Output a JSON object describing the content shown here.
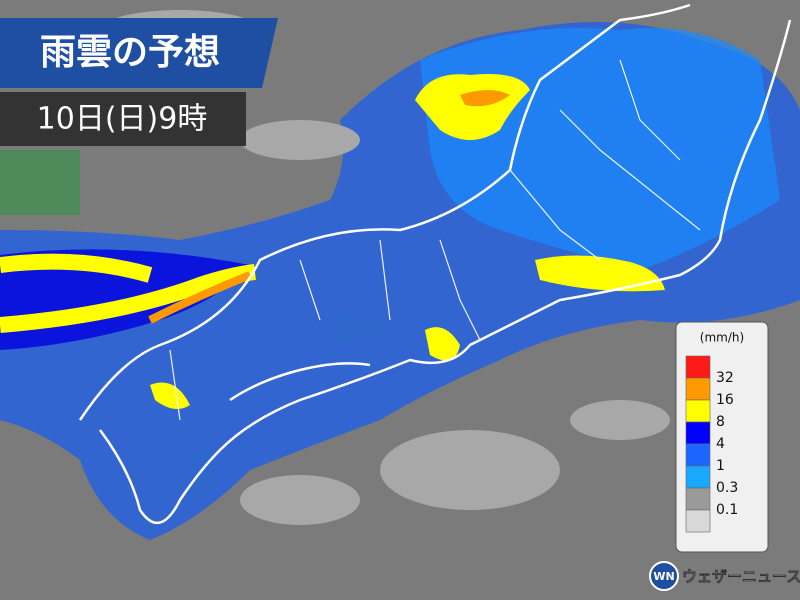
{
  "header": {
    "title": "雨雲の予想",
    "time": "10日(日)9時"
  },
  "legend": {
    "unit": "(mm/h)",
    "colors": [
      "#ff1a1a",
      "#ff9900",
      "#ffff00",
      "#0000ff",
      "#1a66ff",
      "#1aa8ff",
      "#9a9a9a",
      "#d8d8d8"
    ],
    "labels": [
      "32",
      "16",
      "8",
      "4",
      "1",
      "0.3",
      "0.1"
    ]
  },
  "logo": {
    "mark": "WN",
    "text": "ウェザーニュース"
  }
}
